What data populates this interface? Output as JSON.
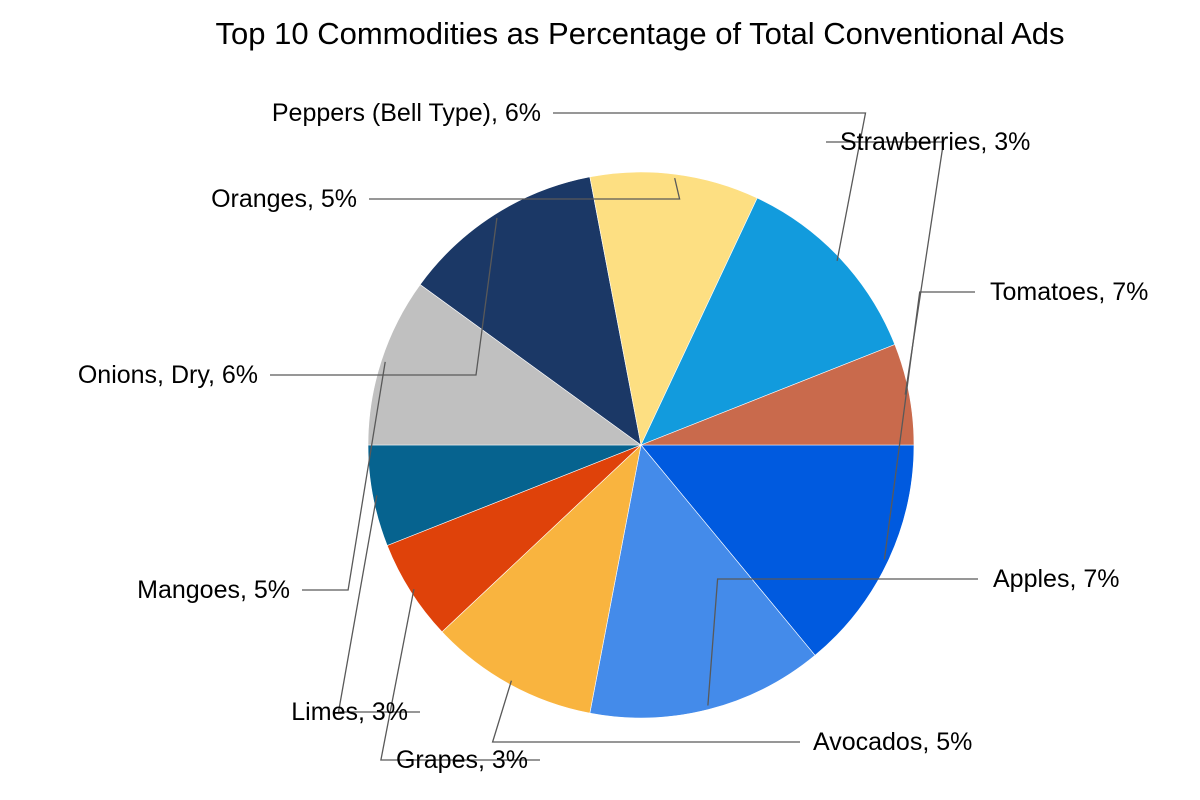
{
  "chart_data": {
    "type": "pie",
    "title": "Top 10 Commodities as Percentage of Total Conventional Ads",
    "slices": [
      {
        "label": "Tomatoes",
        "value": 7,
        "display": "Tomatoes, 7%",
        "color": "#005ADF"
      },
      {
        "label": "Apples",
        "value": 7,
        "display": "Apples, 7%",
        "color": "#448BEA"
      },
      {
        "label": "Avocados",
        "value": 5,
        "display": "Avocados, 5%",
        "color": "#F9B43F"
      },
      {
        "label": "Grapes",
        "value": 3,
        "display": "Grapes, 3%",
        "color": "#DF420A"
      },
      {
        "label": "Limes",
        "value": 3,
        "display": "Limes, 3%",
        "color": "#06638F"
      },
      {
        "label": "Mangoes",
        "value": 5,
        "display": "Mangoes, 5%",
        "color": "#C0C0C0"
      },
      {
        "label": "Onions, Dry",
        "value": 6,
        "display": "Onions, Dry, 6%",
        "color": "#1B3866"
      },
      {
        "label": "Oranges",
        "value": 5,
        "display": "Oranges, 5%",
        "color": "#FDDF82"
      },
      {
        "label": "Peppers (Bell Type)",
        "value": 6,
        "display": "Peppers (Bell Type), 6%",
        "color": "#129BDD"
      },
      {
        "label": "Strawberries",
        "value": 3,
        "display": "Strawberries, 3%",
        "color": "#C96A4C"
      }
    ],
    "start_angle_deg": 0,
    "direction": "clockwise",
    "legend": "none",
    "data_labels": "outside-with-leader-lines"
  }
}
